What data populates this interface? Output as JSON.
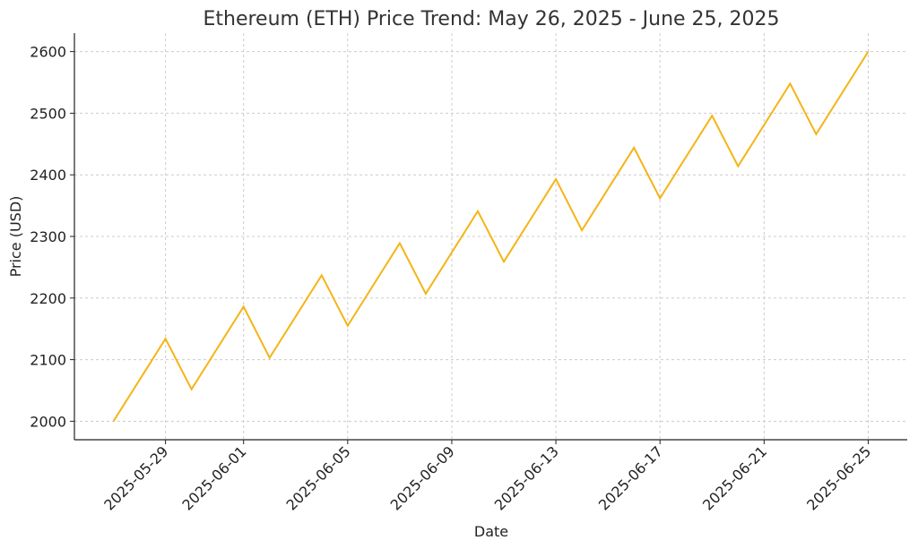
{
  "chart_data": {
    "type": "line",
    "title": "Ethereum (ETH) Price Trend: May 26, 2025 - June 25, 2025",
    "xlabel": "Date",
    "ylabel": "Price (USD)",
    "x": [
      "2025-05-27",
      "2025-05-28",
      "2025-05-29",
      "2025-05-30",
      "2025-05-31",
      "2025-06-01",
      "2025-06-02",
      "2025-06-03",
      "2025-06-04",
      "2025-06-05",
      "2025-06-06",
      "2025-06-07",
      "2025-06-08",
      "2025-06-09",
      "2025-06-10",
      "2025-06-11",
      "2025-06-12",
      "2025-06-13",
      "2025-06-14",
      "2025-06-15",
      "2025-06-16",
      "2025-06-17",
      "2025-06-18",
      "2025-06-19",
      "2025-06-20",
      "2025-06-21",
      "2025-06-22",
      "2025-06-23",
      "2025-06-24",
      "2025-06-25"
    ],
    "series": [
      {
        "values": [
          2000,
          2067,
          2134,
          2052,
          2119,
          2186,
          2103,
          2170,
          2237,
          2155,
          2222,
          2289,
          2207,
          2274,
          2341,
          2259,
          2326,
          2393,
          2310,
          2377,
          2444,
          2362,
          2429,
          2496,
          2414,
          2481,
          2548,
          2466,
          2533,
          2600
        ],
        "color": "#f5b417"
      }
    ],
    "xticks": [
      "2025-05-29",
      "2025-06-01",
      "2025-06-05",
      "2025-06-09",
      "2025-06-13",
      "2025-06-17",
      "2025-06-21",
      "2025-06-25"
    ],
    "yticks": [
      2000,
      2100,
      2200,
      2300,
      2400,
      2500,
      2600
    ],
    "xlim": [
      "2025-05-25 12:00",
      "2025-06-26 12:00"
    ],
    "ylim": [
      1970,
      2630
    ],
    "grid": true
  }
}
